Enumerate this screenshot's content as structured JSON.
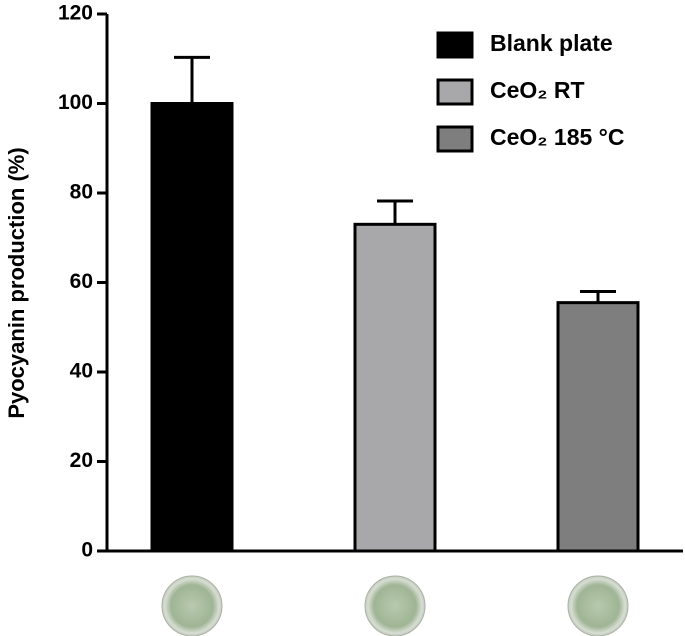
{
  "chart_data": {
    "type": "bar",
    "y_label": "Pyocyanin production (%)",
    "categories": [
      null,
      null,
      null
    ],
    "series": [
      {
        "name": "Blank plate",
        "color": "#000000"
      },
      {
        "name": "CeO₂ RT",
        "color": "#a8a8aa"
      },
      {
        "name": "CeO₂ 185 °C",
        "color": "#7e7e7e"
      }
    ],
    "values": [
      100,
      73,
      55.5
    ],
    "errors": [
      10.3,
      5.2,
      2.5
    ],
    "ylim": [
      0,
      120
    ],
    "yticks": [
      0,
      20,
      40,
      60,
      80,
      100,
      120
    ],
    "legend": "upper right"
  }
}
